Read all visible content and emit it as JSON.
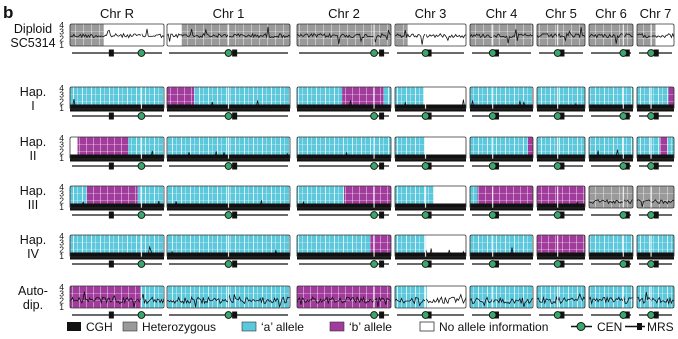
{
  "panel_label": "b",
  "chromosomes": [
    "Chr R",
    "Chr 1",
    "Chr 2",
    "Chr 3",
    "Chr 4",
    "Chr 5",
    "Chr 6",
    "Chr 7"
  ],
  "tracks": [
    {
      "label_lines": [
        "Diploid",
        "SC5314"
      ],
      "kind": "het"
    },
    {
      "label_lines": [
        "Hap.",
        "I"
      ],
      "kind": "hap"
    },
    {
      "label_lines": [
        "Hap.",
        "II"
      ],
      "kind": "hap"
    },
    {
      "label_lines": [
        "Hap.",
        "III"
      ],
      "kind": "hap"
    },
    {
      "label_lines": [
        "Hap.",
        "IV"
      ],
      "kind": "hap"
    },
    {
      "label_lines": [
        "Auto-",
        "dip."
      ],
      "kind": "auto"
    }
  ],
  "y_ticks": [
    "1",
    "2",
    "3",
    "4"
  ],
  "legend": {
    "cgh": "CGH",
    "het": "Heterozygous",
    "a": "‘a’ allele",
    "b": "‘b’ allele",
    "none": "No allele information",
    "cen": "CEN",
    "mrs": "MRS"
  },
  "colors": {
    "a_allele": "#5bc8dc",
    "b_allele": "#a23c9c",
    "heterozygous": "#9a9a9a",
    "no_info": "#ffffff",
    "cgh_trace": "#111111",
    "cen_marker": "#3aa76d",
    "mrs_marker": "#111111"
  },
  "chart_data": {
    "type": "heatmap",
    "x_categories": [
      "Chr R",
      "Chr 1",
      "Chr 2",
      "Chr 3",
      "Chr 4",
      "Chr 5",
      "Chr 6",
      "Chr 7"
    ],
    "y_categories": [
      "Diploid SC5314",
      "Hap. I",
      "Hap. II",
      "Hap. III",
      "Hap. IV",
      "Auto-dip."
    ],
    "ylim": [
      1,
      4
    ],
    "approx_copy_number": [
      2,
      1,
      1,
      1,
      1,
      2
    ],
    "legend_placement": "bottom"
  }
}
